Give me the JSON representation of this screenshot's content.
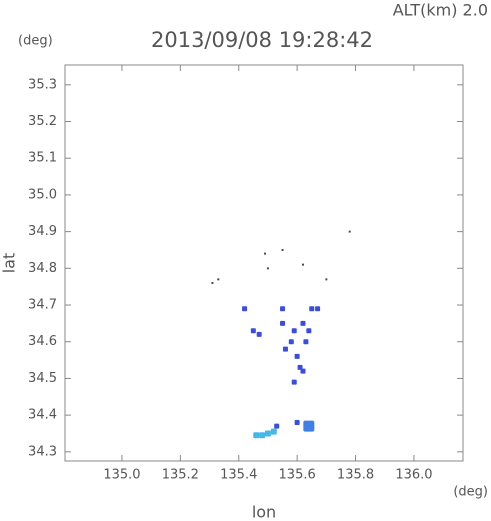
{
  "chart_data": {
    "type": "scatter",
    "title": "2013/09/08 19:28:42",
    "subtitle": "ALT(km) 2.0",
    "y_unit": "(deg)",
    "x_unit": "(deg)",
    "x_label": "lon",
    "y_label": "lat",
    "xlim": [
      134.805,
      136.168
    ],
    "ylim": [
      34.275,
      35.354
    ],
    "xticks": [
      {
        "value": 135.0,
        "label": "135.0"
      },
      135.2,
      135.4,
      135.6,
      135.8,
      {
        "value": 136.0,
        "label": "136.0"
      }
    ],
    "yticks": [
      34.3,
      34.4,
      34.5,
      34.6,
      34.7,
      34.8,
      34.9,
      {
        "value": 35.0,
        "label": "35.0"
      },
      35.1,
      35.2,
      35.3
    ],
    "series": [
      {
        "color": "#444466",
        "marker_size": 2,
        "x": [
          135.31,
          135.33,
          135.49,
          135.55,
          135.62,
          135.78,
          135.7,
          135.5
        ],
        "y": [
          34.76,
          34.77,
          34.84,
          34.85,
          34.81,
          34.9,
          34.77,
          34.8
        ]
      },
      {
        "color": "#3a4de0",
        "marker_size": 5,
        "x": [
          135.42,
          135.55,
          135.67,
          135.45,
          135.55,
          135.59,
          135.62,
          135.58,
          135.63,
          135.6,
          135.56,
          135.61,
          135.59,
          135.62,
          135.64,
          135.47,
          135.65,
          135.6,
          135.53
        ],
        "y": [
          34.69,
          34.69,
          34.69,
          34.63,
          34.65,
          34.63,
          34.65,
          34.6,
          34.6,
          34.56,
          34.58,
          34.53,
          34.49,
          34.52,
          34.63,
          34.62,
          34.69,
          34.38,
          34.37
        ]
      },
      {
        "color": "#3f7fe8",
        "marker_size": 11,
        "x": [
          135.64
        ],
        "y": [
          34.37
        ]
      },
      {
        "color": "#45b8e8",
        "marker_size": 6,
        "x": [
          135.46,
          135.48,
          135.5,
          135.52
        ],
        "y": [
          34.345,
          34.345,
          34.35,
          34.355
        ]
      }
    ],
    "grid": false
  }
}
